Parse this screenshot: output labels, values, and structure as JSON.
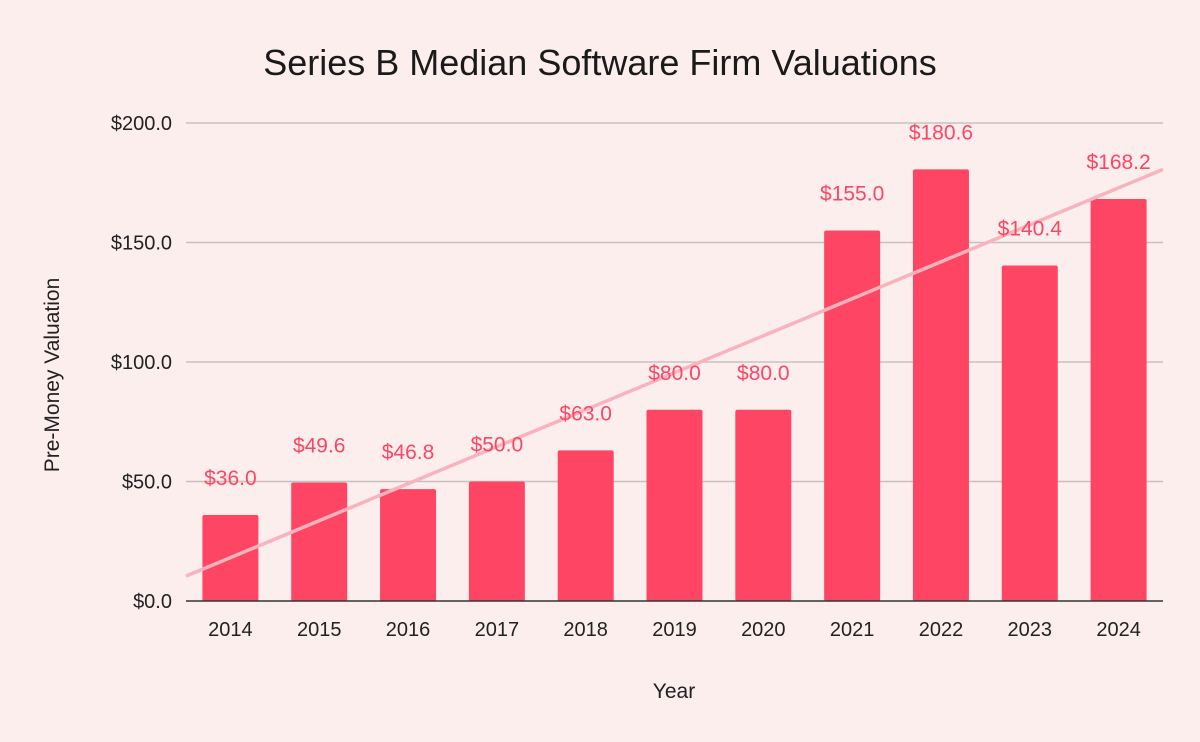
{
  "chart_data": {
    "type": "bar",
    "title": "Series B Median Software Firm Valuations",
    "xlabel": "Year",
    "ylabel": "Pre-Money Valuation",
    "categories": [
      "2014",
      "2015",
      "2016",
      "2017",
      "2018",
      "2019",
      "2020",
      "2021",
      "2022",
      "2023",
      "2024"
    ],
    "values": [
      36.0,
      49.6,
      46.8,
      50.0,
      63.0,
      80.0,
      80.0,
      155.0,
      180.6,
      140.4,
      168.2
    ],
    "data_labels": [
      "$36.0",
      "$49.6",
      "$46.8",
      "$50.0",
      "$63.0",
      "$80.0",
      "$80.0",
      "$155.0",
      "$180.6",
      "$140.4",
      "$168.2"
    ],
    "ylim": [
      0,
      200
    ],
    "yticks": [
      0,
      50,
      100,
      150,
      200
    ],
    "ytick_labels": [
      "$0.0",
      "$50.0",
      "$100.0",
      "$150.0",
      "$200.0"
    ],
    "trendline": {
      "type": "linear",
      "start_value": 10.4,
      "end_value": 180.6
    },
    "grid": true,
    "legend": "none",
    "colors": {
      "background": "#fdeeee",
      "bar": "#ff4564",
      "label": "#ff4564",
      "trendline": "#f9b3bd",
      "grid": "#c8c0c0",
      "axis": "#333333"
    }
  }
}
